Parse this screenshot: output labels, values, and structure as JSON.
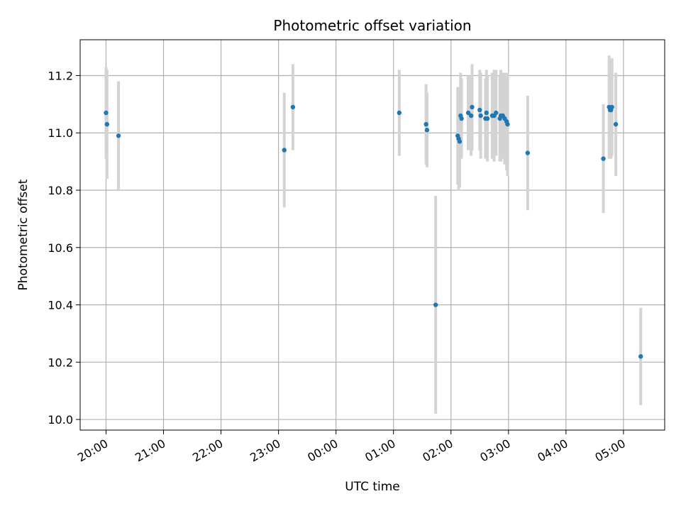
{
  "chart_data": {
    "type": "scatter",
    "title": "Photometric offset variation",
    "xlabel": "UTC time",
    "ylabel": "Photometric offset",
    "x_axis": "time",
    "x_ticks": [
      "20:00",
      "21:00",
      "22:00",
      "23:00",
      "00:00",
      "01:00",
      "02:00",
      "03:00",
      "04:00",
      "05:00"
    ],
    "xlim": [
      "19:33",
      "05:43"
    ],
    "y_ticks": [
      "10.0",
      "10.2",
      "10.4",
      "10.6",
      "10.8",
      "11.0",
      "11.2"
    ],
    "ylim": [
      9.963,
      11.325
    ],
    "grid": true,
    "colors": {
      "point": "#1f77b4",
      "errorbar": "#d3d3d3",
      "grid": "#b0b0b0"
    },
    "series": [
      {
        "points": [
          {
            "time": "20:00",
            "y": 11.07,
            "err": 0.16
          },
          {
            "time": "20:01",
            "y": 11.03,
            "err": 0.19
          },
          {
            "time": "20:13",
            "y": 10.99,
            "err": 0.19
          },
          {
            "time": "23:06",
            "y": 10.94,
            "err": 0.2
          },
          {
            "time": "23:15",
            "y": 11.09,
            "err": 0.15
          },
          {
            "time": "01:06",
            "y": 11.07,
            "err": 0.15
          },
          {
            "time": "01:34",
            "y": 11.03,
            "err": 0.14
          },
          {
            "time": "01:35",
            "y": 11.01,
            "err": 0.13
          },
          {
            "time": "01:44",
            "y": 10.4,
            "err": 0.38
          },
          {
            "time": "02:07",
            "y": 10.99,
            "err": 0.17
          },
          {
            "time": "02:08",
            "y": 10.98,
            "err": 0.18
          },
          {
            "time": "02:09",
            "y": 10.97,
            "err": 0.16
          },
          {
            "time": "02:10",
            "y": 11.06,
            "err": 0.15
          },
          {
            "time": "02:11",
            "y": 11.05,
            "err": 0.14
          },
          {
            "time": "02:18",
            "y": 11.07,
            "err": 0.13
          },
          {
            "time": "02:21",
            "y": 11.06,
            "err": 0.14
          },
          {
            "time": "02:22",
            "y": 11.09,
            "err": 0.15
          },
          {
            "time": "02:30",
            "y": 11.08,
            "err": 0.14
          },
          {
            "time": "02:31",
            "y": 11.06,
            "err": 0.15
          },
          {
            "time": "02:36",
            "y": 11.05,
            "err": 0.14
          },
          {
            "time": "02:37",
            "y": 11.07,
            "err": 0.15
          },
          {
            "time": "02:38",
            "y": 11.05,
            "err": 0.15
          },
          {
            "time": "02:43",
            "y": 11.06,
            "err": 0.15
          },
          {
            "time": "02:45",
            "y": 11.06,
            "err": 0.16
          },
          {
            "time": "02:47",
            "y": 11.07,
            "err": 0.15
          },
          {
            "time": "02:51",
            "y": 11.05,
            "err": 0.15
          },
          {
            "time": "02:52",
            "y": 11.06,
            "err": 0.16
          },
          {
            "time": "02:54",
            "y": 11.06,
            "err": 0.15
          },
          {
            "time": "02:56",
            "y": 11.05,
            "err": 0.16
          },
          {
            "time": "02:58",
            "y": 11.04,
            "err": 0.17
          },
          {
            "time": "02:59",
            "y": 11.03,
            "err": 0.18
          },
          {
            "time": "03:20",
            "y": 10.93,
            "err": 0.2
          },
          {
            "time": "04:39",
            "y": 10.91,
            "err": 0.19
          },
          {
            "time": "04:45",
            "y": 11.09,
            "err": 0.18
          },
          {
            "time": "04:46",
            "y": 11.08,
            "err": 0.17
          },
          {
            "time": "04:47",
            "y": 11.08,
            "err": 0.17
          },
          {
            "time": "04:48",
            "y": 11.09,
            "err": 0.17
          },
          {
            "time": "04:52",
            "y": 11.03,
            "err": 0.18
          },
          {
            "time": "05:18",
            "y": 10.22,
            "err": 0.17
          }
        ]
      }
    ]
  }
}
